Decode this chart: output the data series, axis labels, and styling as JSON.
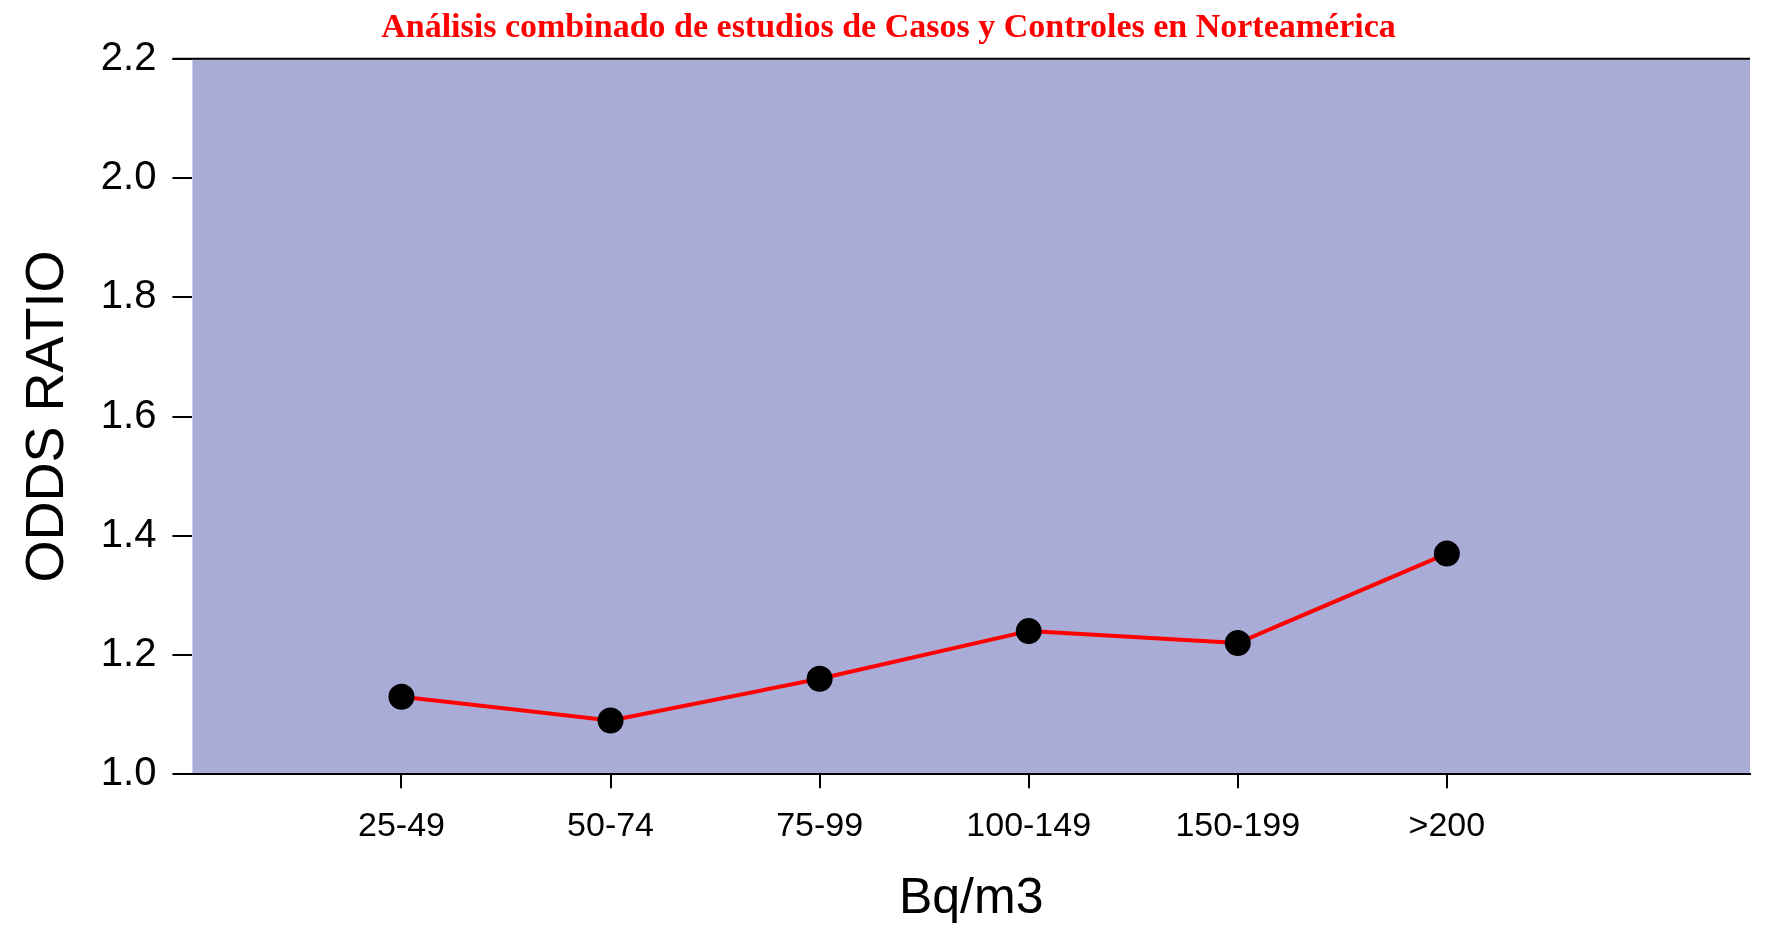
{
  "chart_data": {
    "type": "line",
    "title": "Análisis combinado de estudios de Casos y Controles en Norteamérica",
    "xlabel": "Bq/m3",
    "ylabel": "ODDS RATIO",
    "categories": [
      "25-49",
      "50-74",
      "75-99",
      "100-149",
      "150-199",
      ">200"
    ],
    "series": [
      {
        "color": "#ff0000",
        "values": [
          1.13,
          1.09,
          1.16,
          1.24,
          1.22,
          1.37
        ]
      }
    ],
    "ylim": [
      1.0,
      2.2
    ],
    "yticks": [
      {
        "value": 1.0,
        "label": "1.0"
      },
      1.2,
      1.4,
      1.6,
      1.8,
      {
        "value": 2.0,
        "label": "2.0"
      },
      2.2
    ],
    "grid": false,
    "legend": false,
    "marker": "circle",
    "line_style": "solid"
  }
}
